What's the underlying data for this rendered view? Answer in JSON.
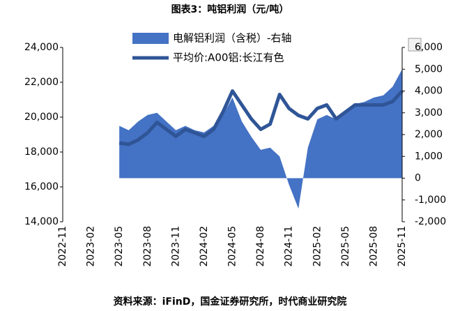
{
  "chart_data": {
    "type": "dual-axis-area-line",
    "title": "图表3：吨铝利润（元/吨）",
    "source": "资料来源：iFinD，国金证券研究所，时代商业研究院",
    "x": [
      "2023-05",
      "2023-06",
      "2023-07",
      "2023-08",
      "2023-09",
      "2023-10",
      "2023-11",
      "2023-12",
      "2024-01",
      "2024-02",
      "2024-03",
      "2024-04",
      "2024-05",
      "2024-06",
      "2024-07",
      "2024-08",
      "2024-09",
      "2024-10",
      "2024-11",
      "2024-12",
      "2025-01",
      "2025-02",
      "2025-03",
      "2025-04",
      "2025-05",
      "2025-06",
      "2025-07",
      "2025-08",
      "2025-09",
      "2025-10",
      "2025-11"
    ],
    "xticks": [
      "2022-11",
      "2023-02",
      "2023-05",
      "2023-08",
      "2023-11",
      "2024-02",
      "2024-05",
      "2024-08",
      "2024-11",
      "2025-02",
      "2025-05",
      "2025-08",
      "2025-11"
    ],
    "series": [
      {
        "name": "电解铝利润（含税）-右轴",
        "type": "area",
        "axis": "y2",
        "color": "#4472c4",
        "values": [
          2400,
          2200,
          2600,
          2900,
          3000,
          2600,
          2200,
          2400,
          2200,
          2100,
          2400,
          2900,
          3700,
          2600,
          1900,
          1300,
          1400,
          1000,
          -300,
          -1400,
          1400,
          2700,
          2900,
          2700,
          3000,
          3400,
          3500,
          3700,
          3800,
          4200,
          5000
        ]
      },
      {
        "name": "平均价:A00铝:长江有色",
        "type": "line",
        "axis": "y",
        "color": "#2f5597",
        "values": [
          18520,
          18440,
          18700,
          19100,
          19700,
          19300,
          18900,
          19300,
          19100,
          18900,
          19300,
          20300,
          21500,
          20700,
          19900,
          19300,
          19600,
          21300,
          20500,
          20100,
          19900,
          20500,
          20700,
          19900,
          20300,
          20700,
          20700,
          20700,
          20700,
          20900,
          21500
        ]
      }
    ],
    "ylim": [
      14000,
      24000
    ],
    "yticks": [
      {
        "value": 14000,
        "label": "14,000"
      },
      {
        "value": 16000,
        "label": "16,000"
      },
      {
        "value": 18000,
        "label": "18,000"
      },
      {
        "value": 20000,
        "label": "20,000"
      },
      {
        "value": 22000,
        "label": "22,000"
      },
      {
        "value": 24000,
        "label": "24,000"
      }
    ],
    "y2lim": [
      -2000,
      6000
    ],
    "y2ticks": [
      {
        "value": -2000,
        "label": "-2,000"
      },
      {
        "value": -1000,
        "label": "-1,000"
      },
      0,
      {
        "value": 1000,
        "label": "1,000"
      },
      {
        "value": 2000,
        "label": "2,000"
      },
      {
        "value": 3000,
        "label": "3,000"
      },
      {
        "value": 4000,
        "label": "4,000"
      },
      {
        "value": 5000,
        "label": "5,000"
      },
      {
        "value": 6000,
        "label": "6,000"
      }
    ]
  }
}
